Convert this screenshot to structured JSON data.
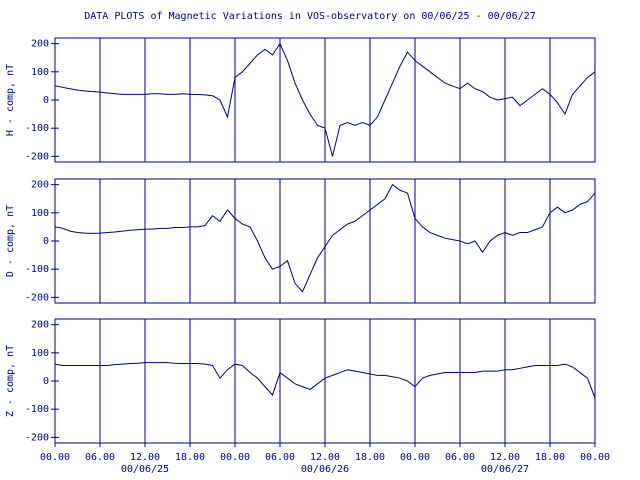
{
  "chart_data": [
    {
      "type": "line",
      "title": "DATA PLOTS of Magnetic Variations in VOS-observatory on 00/06/25 - 00/06/27",
      "ylabel": "H - comp, nT",
      "color": "#000080",
      "grid": true,
      "xlim": [
        0,
        72
      ],
      "ylim": [
        -220,
        220
      ],
      "yticks": [
        200,
        100,
        0,
        -100,
        -200
      ],
      "x": [
        0,
        1,
        2,
        3,
        4,
        5,
        6,
        7,
        8,
        9,
        10,
        11,
        12,
        13,
        14,
        15,
        16,
        17,
        18,
        19,
        20,
        21,
        22,
        23,
        24,
        25,
        26,
        27,
        28,
        29,
        30,
        31,
        32,
        33,
        34,
        35,
        36,
        37,
        38,
        39,
        40,
        41,
        42,
        43,
        44,
        45,
        46,
        47,
        48,
        49,
        50,
        51,
        52,
        53,
        54,
        55,
        56,
        57,
        58,
        59,
        60,
        61,
        62,
        63,
        64,
        65,
        66,
        67,
        68,
        69,
        70,
        71,
        72
      ],
      "values": [
        50,
        45,
        40,
        35,
        32,
        30,
        28,
        25,
        22,
        20,
        20,
        20,
        20,
        22,
        22,
        20,
        20,
        22,
        20,
        20,
        18,
        15,
        0,
        -60,
        80,
        100,
        130,
        160,
        180,
        160,
        200,
        140,
        60,
        0,
        -50,
        -90,
        -100,
        -200,
        -90,
        -80,
        -90,
        -80,
        -90,
        -60,
        0,
        60,
        120,
        170,
        140,
        120,
        100,
        80,
        60,
        50,
        40,
        60,
        40,
        30,
        10,
        0,
        5,
        10,
        -20,
        0,
        20,
        40,
        20,
        -10,
        -50,
        20,
        50,
        80,
        100
      ]
    },
    {
      "type": "line",
      "ylabel": "D - comp, nT",
      "color": "#000080",
      "grid": true,
      "xlim": [
        0,
        72
      ],
      "ylim": [
        -220,
        220
      ],
      "yticks": [
        200,
        100,
        0,
        -100,
        -200
      ],
      "x": [
        0,
        1,
        2,
        3,
        4,
        5,
        6,
        7,
        8,
        9,
        10,
        11,
        12,
        13,
        14,
        15,
        16,
        17,
        18,
        19,
        20,
        21,
        22,
        23,
        24,
        25,
        26,
        27,
        28,
        29,
        30,
        31,
        32,
        33,
        34,
        35,
        36,
        37,
        38,
        39,
        40,
        41,
        42,
        43,
        44,
        45,
        46,
        47,
        48,
        49,
        50,
        51,
        52,
        53,
        54,
        55,
        56,
        57,
        58,
        59,
        60,
        61,
        62,
        63,
        64,
        65,
        66,
        67,
        68,
        69,
        70,
        71,
        72
      ],
      "values": [
        50,
        45,
        35,
        30,
        28,
        27,
        28,
        30,
        32,
        35,
        38,
        40,
        42,
        42,
        45,
        45,
        48,
        48,
        50,
        50,
        55,
        90,
        70,
        110,
        80,
        60,
        50,
        0,
        -60,
        -100,
        -90,
        -70,
        -150,
        -180,
        -120,
        -60,
        -20,
        20,
        40,
        60,
        70,
        90,
        110,
        130,
        150,
        200,
        180,
        170,
        80,
        50,
        30,
        20,
        10,
        5,
        0,
        -10,
        0,
        -40,
        0,
        20,
        30,
        20,
        30,
        30,
        40,
        50,
        100,
        120,
        100,
        110,
        130,
        140,
        170
      ]
    },
    {
      "type": "line",
      "ylabel": "Z - comp, nT",
      "color": "#000080",
      "grid": true,
      "xlim": [
        0,
        72
      ],
      "ylim": [
        -220,
        220
      ],
      "yticks": [
        200,
        100,
        0,
        -100,
        -200
      ],
      "x": [
        0,
        1,
        2,
        3,
        4,
        5,
        6,
        7,
        8,
        9,
        10,
        11,
        12,
        13,
        14,
        15,
        16,
        17,
        18,
        19,
        20,
        21,
        22,
        23,
        24,
        25,
        26,
        27,
        28,
        29,
        30,
        31,
        32,
        33,
        34,
        35,
        36,
        37,
        38,
        39,
        40,
        41,
        42,
        43,
        44,
        45,
        46,
        47,
        48,
        49,
        50,
        51,
        52,
        53,
        54,
        55,
        56,
        57,
        58,
        59,
        60,
        61,
        62,
        63,
        64,
        65,
        66,
        67,
        68,
        69,
        70,
        71,
        72
      ],
      "values": [
        60,
        55,
        55,
        55,
        55,
        55,
        55,
        55,
        58,
        60,
        62,
        63,
        65,
        65,
        65,
        65,
        63,
        62,
        62,
        62,
        60,
        55,
        10,
        40,
        60,
        55,
        30,
        10,
        -20,
        -50,
        30,
        10,
        -10,
        -20,
        -30,
        -10,
        10,
        20,
        30,
        40,
        35,
        30,
        25,
        20,
        20,
        15,
        10,
        0,
        -20,
        10,
        20,
        25,
        30,
        30,
        30,
        30,
        30,
        35,
        35,
        35,
        40,
        40,
        45,
        50,
        55,
        55,
        55,
        55,
        60,
        50,
        30,
        10,
        -60
      ],
      "xticks": [
        {
          "value": 0,
          "label": "00.00"
        },
        {
          "value": 6,
          "label": "06.00"
        },
        {
          "value": 12,
          "label": "12.00"
        },
        {
          "value": 18,
          "label": "18.00"
        },
        {
          "value": 24,
          "label": "00.00"
        },
        {
          "value": 30,
          "label": "06.00"
        },
        {
          "value": 36,
          "label": "12.00"
        },
        {
          "value": 42,
          "label": "18.00"
        },
        {
          "value": 48,
          "label": "00.00"
        },
        {
          "value": 54,
          "label": "06.00"
        },
        {
          "value": 60,
          "label": "12.00"
        },
        {
          "value": 66,
          "label": "18.00"
        },
        {
          "value": 72,
          "label": "00.00"
        }
      ],
      "date_labels": [
        {
          "value": 12,
          "label": "00/06/25"
        },
        {
          "value": 36,
          "label": "00/06/26"
        },
        {
          "value": 60,
          "label": "00/06/27"
        }
      ]
    }
  ]
}
